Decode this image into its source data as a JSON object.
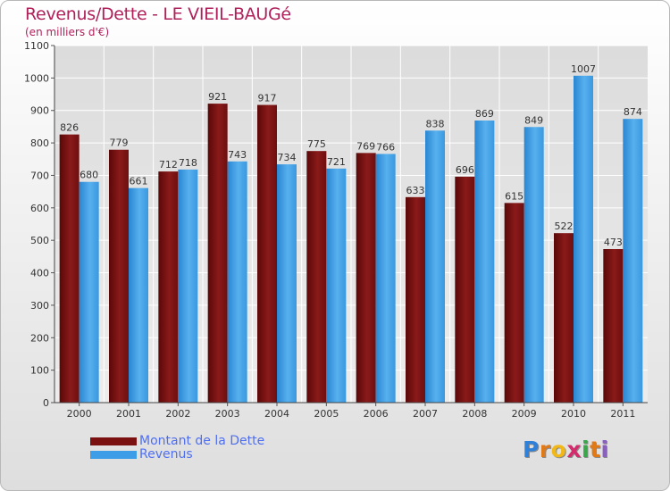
{
  "chart_data": {
    "type": "bar",
    "title": "Revenus/Dette - LE VIEIL-BAUGé",
    "subtitle": "(en milliers d'€)",
    "categories": [
      "2000",
      "2001",
      "2002",
      "2003",
      "2004",
      "2005",
      "2006",
      "2007",
      "2008",
      "2009",
      "2010",
      "2011"
    ],
    "series": [
      {
        "name": "Montant de la Dette",
        "color": "#7a1010",
        "values": [
          826,
          779,
          712,
          921,
          917,
          775,
          769,
          633,
          696,
          615,
          522,
          473
        ]
      },
      {
        "name": "Revenus",
        "color": "#3d9de6",
        "values": [
          680,
          661,
          718,
          743,
          734,
          721,
          766,
          838,
          869,
          849,
          1007,
          874
        ]
      }
    ],
    "ylim": [
      0,
      1100
    ],
    "yticks": [
      0,
      100,
      200,
      300,
      400,
      500,
      600,
      700,
      800,
      900,
      1000,
      1100
    ],
    "grid": true,
    "legend_position": "bottom-left"
  },
  "logo": {
    "letters": [
      "P",
      "r",
      "o",
      "x",
      "i",
      "t",
      "i"
    ],
    "colors": [
      "#2f80d8",
      "#e07a18",
      "#f2b818",
      "#d42b6c",
      "#3aa84a",
      "#e07a18",
      "#8a5fc0"
    ]
  }
}
